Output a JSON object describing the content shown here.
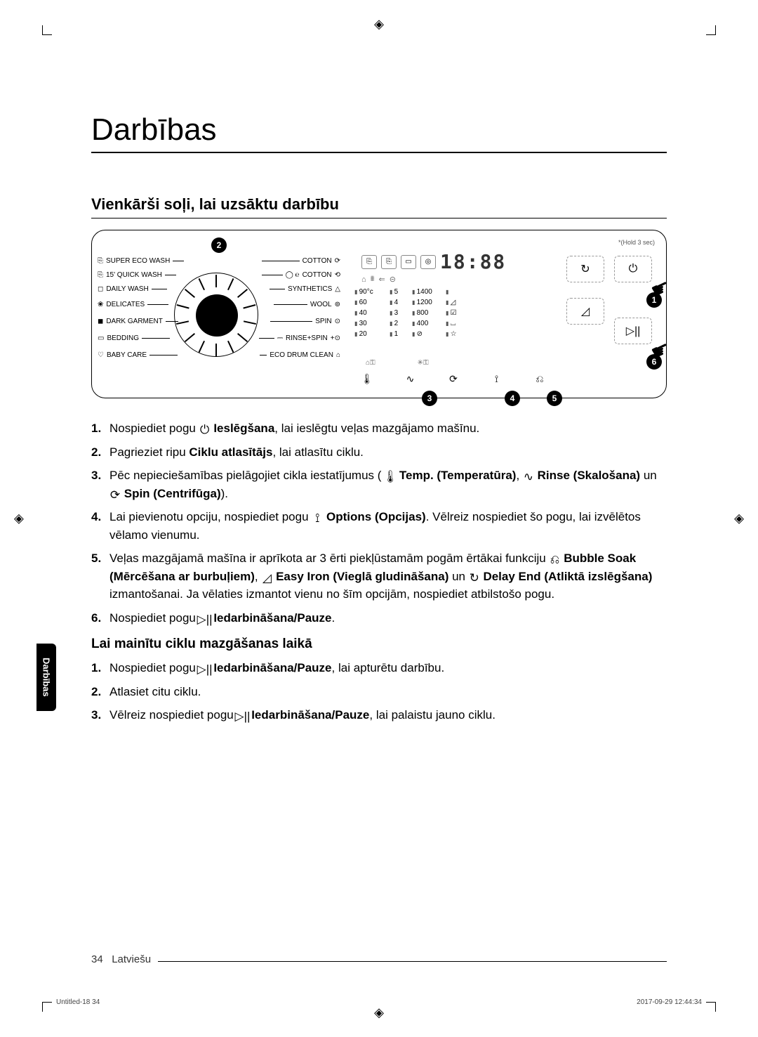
{
  "title": "Darbības",
  "section_heading": "Vienkārši soļi, lai uzsāktu darbību",
  "panel": {
    "hold_label": "*(Hold 3 sec)",
    "programs_left": [
      {
        "icon": "⎘",
        "label": "SUPER ECO WASH"
      },
      {
        "icon": "⎘",
        "label": "15' QUICK WASH"
      },
      {
        "icon": "◻",
        "label": "DAILY WASH"
      },
      {
        "icon": "❀",
        "label": "DELICATES"
      },
      {
        "icon": "◼",
        "label": "DARK GARMENT"
      },
      {
        "icon": "▭",
        "label": "BEDDING"
      },
      {
        "icon": "♡",
        "label": "BABY CARE"
      }
    ],
    "programs_right": [
      {
        "icon": "⟳",
        "label": "COTTON"
      },
      {
        "icon": "⟲",
        "label": "COTTON",
        "prefix": "◯ ℮"
      },
      {
        "icon": "△",
        "label": "SYNTHETICS"
      },
      {
        "icon": "⊚",
        "label": "WOOL"
      },
      {
        "icon": "⊙",
        "label": "SPIN"
      },
      {
        "icon": "+⊙",
        "label": "RINSE+SPIN",
        "prefix": "⎓"
      },
      {
        "icon": "⌂",
        "label": "ECO DRUM CLEAN"
      }
    ],
    "display_icons": [
      "⎘",
      "⎘",
      "▭",
      "◎"
    ],
    "display_icons2": [
      "⌂",
      "⩩",
      "⇐",
      "⊝"
    ],
    "digits": "18:88",
    "temp_col": [
      "90°c",
      "60",
      "40",
      "30",
      "20"
    ],
    "rinse_col": [
      "5",
      "4",
      "3",
      "2",
      "1"
    ],
    "spin_col": [
      "1400",
      "1200",
      "800",
      "400",
      "⊘"
    ],
    "opt_col": [
      "",
      "◿",
      "☑",
      "⌴",
      "☆"
    ],
    "buttons_row": [
      "🌡",
      "∿",
      "⟳",
      "⟟",
      "⎌"
    ],
    "lock_icons": [
      "⌂⚿",
      "✳⚿"
    ],
    "delay_btn": "↻",
    "iron_btn": "◿",
    "power_btn": "⏻",
    "start_btn": "▷||",
    "callouts": [
      "1",
      "2",
      "3",
      "4",
      "5",
      "6"
    ]
  },
  "steps_main": [
    {
      "pre": "Nospiediet pogu ",
      "icon": "⏻",
      "b": "Ieslēgšana",
      "post": ", lai ieslēgtu veļas mazgājamo mašīnu."
    },
    {
      "pre": "Pagrieziet ripu ",
      "b": "Ciklu atlasītājs",
      "post": ", lai atlasītu ciklu."
    },
    {
      "pre": "Pēc nepieciešamības pielāgojiet cikla iestatījumus ( ",
      "icon": "🌡",
      "b": "Temp. (Temperatūra)",
      "mid": ", ",
      "icon2": "∿",
      "b2": "Rinse (Skalošana)",
      "mid2": " un ",
      "icon3": "⟳",
      "b3": "Spin (Centrifūga)",
      "post": ")."
    },
    {
      "pre": "Lai pievienotu opciju, nospiediet pogu ",
      "icon": "⟟",
      "b": "Options (Opcijas)",
      "post": ". Vēlreiz nospiediet šo pogu, lai izvēlētos vēlamo vienumu."
    },
    {
      "pre": "Veļas mazgājamā mašīna ir aprīkota ar 3 ērti piekļūstamām pogām ērtākai funkciju ",
      "icon": "⎌",
      "b": "Bubble Soak (Mērcēšana ar burbuļiem)",
      "mid": ", ",
      "icon2": "◿",
      "b2": "Easy Iron (Vieglā gludināšana)",
      "mid2": " un ",
      "icon3": "↻",
      "b3": "Delay End (Atliktā izslēgšana)",
      "post": " izmantošanai. Ja vēlaties izmantot vienu no šīm opcijām, nospiediet atbilstošo pogu."
    },
    {
      "pre": "Nospiediet pogu ",
      "icon": "▷||",
      "b": "Iedarbināšana/Pauze",
      "post": "."
    }
  ],
  "sub_heading": "Lai mainītu ciklu mazgāšanas laikā",
  "steps_sub": [
    {
      "pre": "Nospiediet pogu ",
      "icon": "▷||",
      "b": "Iedarbināšana/Pauze",
      "post": ", lai apturētu darbību."
    },
    {
      "pre": "Atlasiet citu ciklu."
    },
    {
      "pre": "Vēlreiz nospiediet pogu ",
      "icon": "▷||",
      "b": "Iedarbināšana/Pauze",
      "post": ", lai palaistu jauno ciklu."
    }
  ],
  "side_tab": "Darbības",
  "footer": {
    "page": "34",
    "lang": "Latviešu",
    "file": "Untitled-18   34",
    "stamp": "2017-09-29   12:44:34"
  }
}
